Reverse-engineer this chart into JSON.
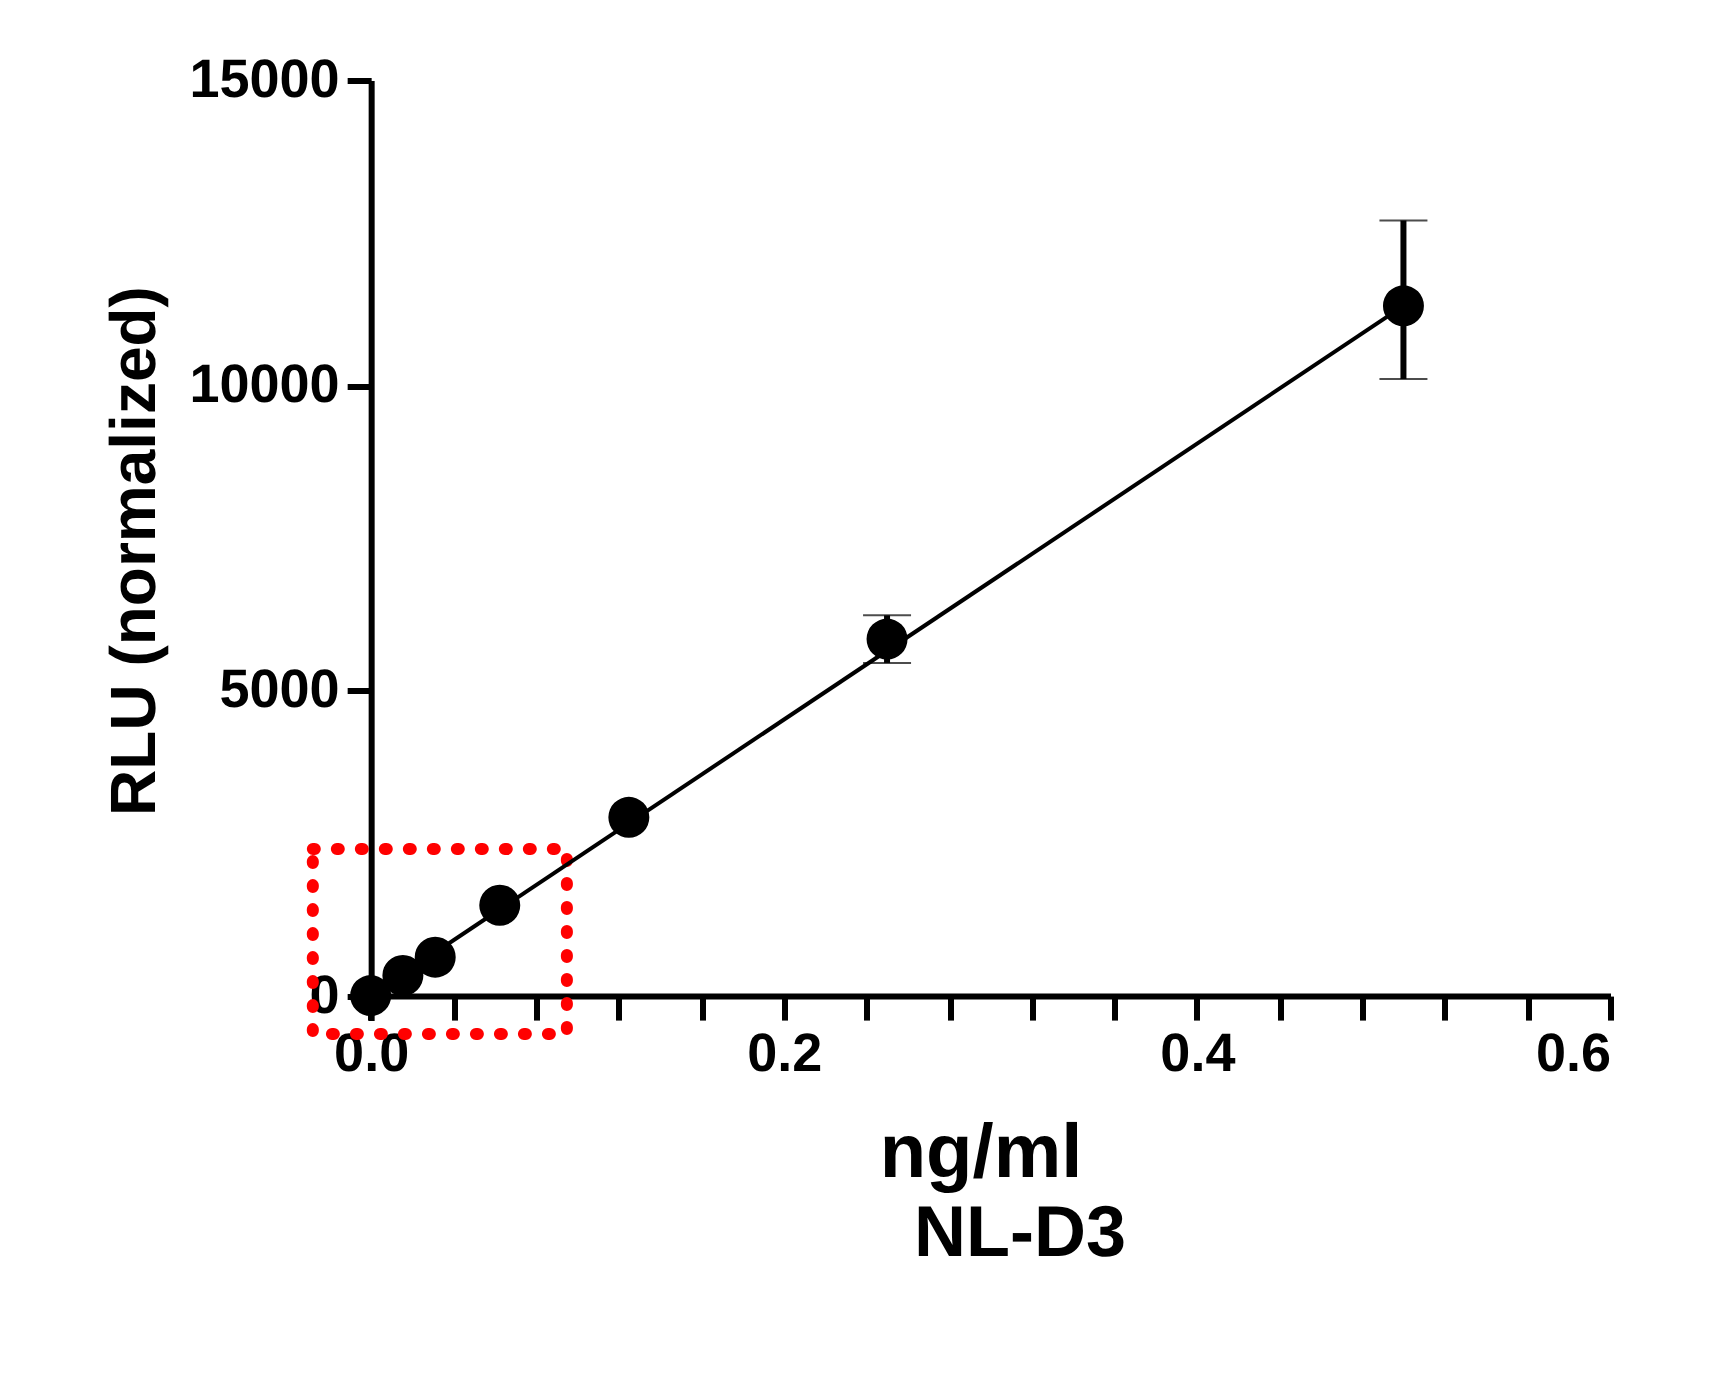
{
  "chart_data": {
    "type": "scatter",
    "xlabel": "ng/ml",
    "ylabel": "RLU (normalized)",
    "annotations": [
      "NL-D3"
    ],
    "xlim": [
      -0.01,
      0.6
    ],
    "ylim": [
      -400,
      15000
    ],
    "xticks": [
      {
        "value": 0,
        "label": "0.0"
      },
      {
        "value": 0.04,
        "label": null
      },
      {
        "value": 0.08,
        "label": null
      },
      {
        "value": 0.12,
        "label": null
      },
      {
        "value": 0.16,
        "label": null
      },
      {
        "value": 0.2,
        "label": "0.2"
      },
      {
        "value": 0.24,
        "label": null
      },
      {
        "value": 0.28,
        "label": null
      },
      {
        "value": 0.32,
        "label": null
      },
      {
        "value": 0.36,
        "label": null
      },
      {
        "value": 0.4,
        "label": "0.4"
      },
      {
        "value": 0.44,
        "label": null
      },
      {
        "value": 0.48,
        "label": null
      },
      {
        "value": 0.52,
        "label": null
      },
      {
        "value": 0.56,
        "label": null
      },
      {
        "value": 0.6,
        "label": "0.6"
      }
    ],
    "yticks": [
      0,
      5000,
      10000,
      15000
    ],
    "grid": false,
    "marker": "circle",
    "series": [
      {
        "color": "#000000",
        "x": [
          0,
          0.0156,
          0.03125,
          0.0625,
          0.125,
          0.25,
          0.5
        ],
        "values": [
          0,
          330,
          630,
          1480,
          2920,
          5840,
          11300
        ],
        "errors": [
          null,
          null,
          null,
          null,
          null,
          [
            5450,
            6230
          ],
          [
            10100,
            12700
          ]
        ]
      },
      {
        "type": "line",
        "color": "#000000",
        "x": [
          0,
          0.5
        ],
        "values": [
          0,
          11300
        ],
        "marker": "none"
      }
    ]
  }
}
